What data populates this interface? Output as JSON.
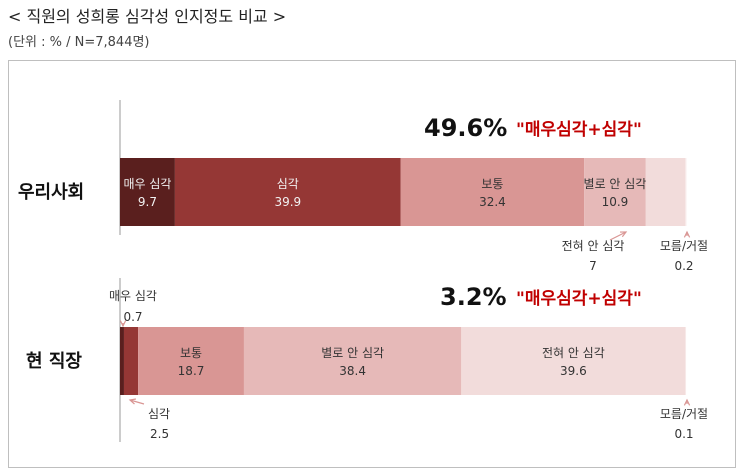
{
  "header": {
    "title": "< 직원의 성희롱 심각성 인지정도 비교 >",
    "subtitle": "(단위 : % / N=7,844명)"
  },
  "chart_data": {
    "type": "bar",
    "orientation": "horizontal-stacked-100",
    "xlim": [
      0,
      100
    ],
    "segment_labels": [
      "매우 심각",
      "심각",
      "보통",
      "별로 안 심각",
      "전혀 안 심각",
      "모름/거절"
    ],
    "colors": [
      "#5a1f1e",
      "#953735",
      "#d99694",
      "#e6b9b8",
      "#f2dcdb",
      "#faf0f0"
    ],
    "rows": [
      {
        "category": "우리사회",
        "segments": [
          {
            "name": "매우 심각",
            "label": "매우 심각",
            "value": 9.7,
            "value_text": "9.7",
            "placement": "inside"
          },
          {
            "name": "심각",
            "label": "심각",
            "value": 39.9,
            "value_text": "39.9",
            "placement": "inside"
          },
          {
            "name": "보통",
            "label": "보통",
            "value": 32.4,
            "value_text": "32.4",
            "placement": "inside"
          },
          {
            "name": "별로 안 심각",
            "label": "별로 안 심각",
            "value": 10.9,
            "value_text": "10.9",
            "placement": "inside"
          },
          {
            "name": "전혀 안 심각",
            "label": "전혀 안 심각",
            "value": 7.0,
            "value_text": "7",
            "placement": "below"
          },
          {
            "name": "모름/거절",
            "label": "모름/거절",
            "value": 0.2,
            "value_text": "0.2",
            "placement": "below"
          }
        ],
        "highlight_pct": "49.6%",
        "highlight_note": "\"매우심각+심각\""
      },
      {
        "category": "현 직장",
        "segments": [
          {
            "name": "매우 심각",
            "label": "매우 심각",
            "value": 0.7,
            "value_text": "0.7",
            "placement": "above"
          },
          {
            "name": "심각",
            "label": "심각",
            "value": 2.5,
            "value_text": "2.5",
            "placement": "below"
          },
          {
            "name": "보통",
            "label": "보통",
            "value": 18.7,
            "value_text": "18.7",
            "placement": "inside"
          },
          {
            "name": "별로 안 심각",
            "label": "별로 안 심각",
            "value": 38.4,
            "value_text": "38.4",
            "placement": "inside"
          },
          {
            "name": "전혀 안 심각",
            "label": "전혀 안 심각",
            "value": 39.6,
            "value_text": "39.6",
            "placement": "inside"
          },
          {
            "name": "모름/거절",
            "label": "모름/거절",
            "value": 0.1,
            "value_text": "0.1",
            "placement": "below"
          }
        ],
        "highlight_pct": "3.2%",
        "highlight_note": "\"매우심각+심각\""
      }
    ]
  }
}
